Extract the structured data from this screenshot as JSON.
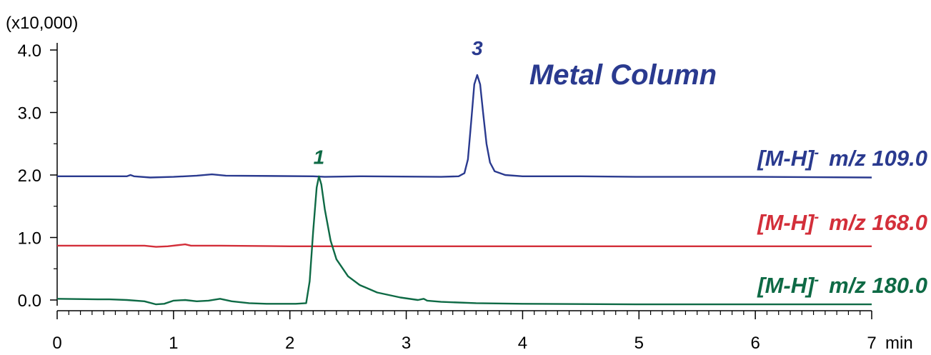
{
  "chart_data": {
    "type": "line",
    "title": "Metal Column",
    "xlabel": "min",
    "ylabel": "",
    "y_multiplier_label": "(x10,000)",
    "xlim": [
      0,
      7
    ],
    "ylim": [
      -0.2,
      4.0
    ],
    "x_ticks": [
      "0",
      "1",
      "2",
      "3",
      "4",
      "5",
      "6",
      "7"
    ],
    "y_ticks": [
      "0.0",
      "1.0",
      "2.0",
      "3.0",
      "4.0"
    ],
    "grid": false,
    "series": [
      {
        "name": "[M-H]- m/z 109.0",
        "label_main": "[M-H]",
        "label_sup": "-",
        "label_mz": "m/z 109.0",
        "color": "#2a3a8f",
        "points": [
          [
            0,
            1.98
          ],
          [
            0.6,
            1.98
          ],
          [
            0.63,
            2.0
          ],
          [
            0.66,
            1.98
          ],
          [
            0.8,
            1.96
          ],
          [
            1.0,
            1.97
          ],
          [
            1.2,
            1.99
          ],
          [
            1.33,
            2.01
          ],
          [
            1.45,
            1.99
          ],
          [
            2.2,
            1.98
          ],
          [
            2.3,
            1.97
          ],
          [
            2.6,
            1.98
          ],
          [
            3.3,
            1.97
          ],
          [
            3.45,
            1.98
          ],
          [
            3.5,
            2.03
          ],
          [
            3.53,
            2.25
          ],
          [
            3.56,
            2.9
          ],
          [
            3.585,
            3.45
          ],
          [
            3.61,
            3.6
          ],
          [
            3.635,
            3.45
          ],
          [
            3.66,
            3.0
          ],
          [
            3.69,
            2.5
          ],
          [
            3.72,
            2.2
          ],
          [
            3.76,
            2.06
          ],
          [
            3.85,
            2.0
          ],
          [
            4.0,
            1.98
          ],
          [
            4.5,
            1.98
          ],
          [
            5.0,
            1.97
          ],
          [
            6.0,
            1.97
          ],
          [
            7.0,
            1.96
          ]
        ]
      },
      {
        "name": "[M-H]- m/z 168.0",
        "label_main": "[M-H]",
        "label_sup": "-",
        "label_mz": "m/z 168.0",
        "color": "#d32f3a",
        "points": [
          [
            0,
            0.87
          ],
          [
            0.75,
            0.87
          ],
          [
            0.85,
            0.85
          ],
          [
            0.95,
            0.86
          ],
          [
            1.05,
            0.88
          ],
          [
            1.1,
            0.89
          ],
          [
            1.15,
            0.87
          ],
          [
            1.4,
            0.87
          ],
          [
            2.0,
            0.86
          ],
          [
            3.0,
            0.86
          ],
          [
            4.0,
            0.86
          ],
          [
            5.0,
            0.86
          ],
          [
            6.0,
            0.86
          ],
          [
            7.0,
            0.86
          ]
        ]
      },
      {
        "name": "[M-H]- m/z 180.0",
        "label_main": "[M-H]",
        "label_sup": "-",
        "label_mz": "m/z 180.0",
        "color": "#0e6a45",
        "points": [
          [
            0,
            0.02
          ],
          [
            0.35,
            0.01
          ],
          [
            0.45,
            0.01
          ],
          [
            0.6,
            0.0
          ],
          [
            0.75,
            -0.02
          ],
          [
            0.85,
            -0.07
          ],
          [
            0.92,
            -0.06
          ],
          [
            1.0,
            -0.01
          ],
          [
            1.1,
            0.0
          ],
          [
            1.2,
            -0.02
          ],
          [
            1.3,
            -0.01
          ],
          [
            1.4,
            0.02
          ],
          [
            1.5,
            -0.02
          ],
          [
            1.65,
            -0.05
          ],
          [
            1.8,
            -0.06
          ],
          [
            2.05,
            -0.06
          ],
          [
            2.14,
            -0.05
          ],
          [
            2.17,
            0.3
          ],
          [
            2.2,
            1.1
          ],
          [
            2.23,
            1.8
          ],
          [
            2.25,
            1.98
          ],
          [
            2.27,
            1.85
          ],
          [
            2.3,
            1.45
          ],
          [
            2.35,
            0.95
          ],
          [
            2.4,
            0.65
          ],
          [
            2.5,
            0.38
          ],
          [
            2.6,
            0.24
          ],
          [
            2.75,
            0.12
          ],
          [
            2.95,
            0.04
          ],
          [
            3.1,
            0.0
          ],
          [
            3.15,
            0.02
          ],
          [
            3.18,
            -0.01
          ],
          [
            3.3,
            -0.03
          ],
          [
            3.6,
            -0.05
          ],
          [
            4.0,
            -0.06
          ],
          [
            5.0,
            -0.07
          ],
          [
            6.0,
            -0.07
          ],
          [
            7.0,
            -0.07
          ]
        ]
      }
    ],
    "annotations": [
      {
        "text": "1",
        "x": 2.25,
        "y": 2.18,
        "color": "#0e6a45"
      },
      {
        "text": "3",
        "x": 3.61,
        "y": 3.92,
        "color": "#2a3a8f"
      }
    ]
  }
}
